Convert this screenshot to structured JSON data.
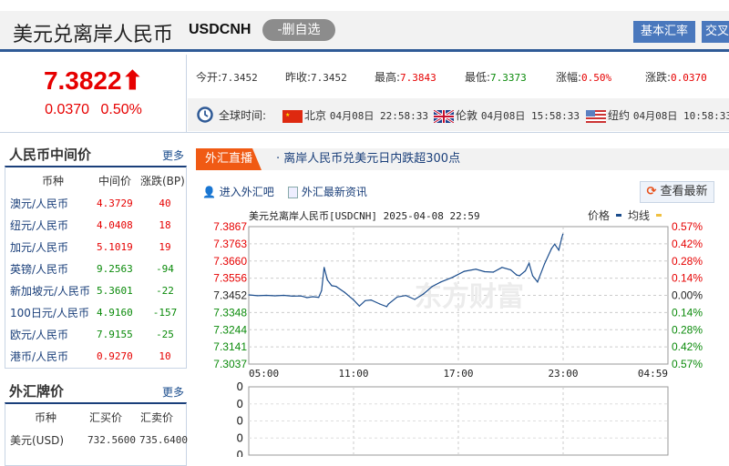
{
  "header": {
    "title": "美元兑离岸人民币",
    "code": "USDCNH",
    "remove_watch": "-删自选",
    "btn_basic": "基本汇率",
    "btn_cross": "交叉"
  },
  "quote": {
    "price": "7.3822",
    "arrow": "⬆",
    "change": "0.0370",
    "change_pct": "0.50%"
  },
  "stats": [
    {
      "label": "今开:",
      "value": "7.3452",
      "color": "#333333"
    },
    {
      "label": "昨收:",
      "value": "7.3452",
      "color": "#333333"
    },
    {
      "label": "最高:",
      "value": "7.3843",
      "color": "#e60000"
    },
    {
      "label": "最低:",
      "value": "7.3373",
      "color": "#0a8a0a"
    },
    {
      "label": "涨幅:",
      "value": "0.50%",
      "color": "#e60000"
    },
    {
      "label": "涨跌:",
      "value": "0.0370",
      "color": "#e60000"
    }
  ],
  "world_time": {
    "label": "全球时间:",
    "cities": [
      {
        "name": "北京",
        "time": "04月08日 22:58:33",
        "flag": "china-flag"
      },
      {
        "name": "伦敦",
        "time": "04月08日 15:58:33",
        "flag": "uk-flag"
      },
      {
        "name": "纽约",
        "time": "04月08日 10:58:33",
        "flag": "us-flag"
      }
    ]
  },
  "mid_price": {
    "title": "人民币中间价",
    "more": "更多",
    "headers": [
      "币种",
      "中间价",
      "涨跌(BP)"
    ],
    "rows": [
      {
        "name": "澳元/人民币",
        "price": "4.3729",
        "bp": "40",
        "dir": "up"
      },
      {
        "name": "纽元/人民币",
        "price": "4.0408",
        "bp": "18",
        "dir": "up"
      },
      {
        "name": "加元/人民币",
        "price": "5.1019",
        "bp": "19",
        "dir": "up"
      },
      {
        "name": "英镑/人民币",
        "price": "9.2563",
        "bp": "-94",
        "dir": "down"
      },
      {
        "name": "新加坡元/人民币",
        "price": "5.3601",
        "bp": "-22",
        "dir": "down"
      },
      {
        "name": "100日元/人民币",
        "price": "4.9160",
        "bp": "-157",
        "dir": "down"
      },
      {
        "name": "欧元/人民币",
        "price": "7.9155",
        "bp": "-25",
        "dir": "down"
      },
      {
        "name": "港币/人民币",
        "price": "0.9270",
        "bp": "10",
        "dir": "up"
      }
    ]
  },
  "board": {
    "title": "外汇牌价",
    "more": "更多",
    "headers": [
      "币种",
      "汇买价",
      "汇卖价"
    ],
    "rows": [
      {
        "name": "美元(USD)",
        "buy": "732.5600",
        "sell": "735.6400"
      }
    ]
  },
  "live": {
    "tag": "外汇直播",
    "news": "· 离岸人民币兑美元日内跌超300点"
  },
  "links": {
    "forum": "进入外汇吧",
    "news": "外汇最新资讯",
    "refresh": "查看最新"
  },
  "chart_data": {
    "type": "line",
    "title": "美元兑离岸人民币[USDCNH] 2025-04-08 22:59",
    "legend": [
      {
        "name": "价格",
        "color": "#1a4c8c"
      },
      {
        "name": "均线",
        "color": "#f0c040"
      }
    ],
    "ylim": [
      7.3037,
      7.3867
    ],
    "base": 7.3452,
    "y_ticks": [
      "7.3867",
      "7.3763",
      "7.3660",
      "7.3556",
      "7.3452",
      "7.3348",
      "7.3244",
      "7.3141",
      "7.3037"
    ],
    "pct_ticks": [
      "0.57%",
      "0.42%",
      "0.28%",
      "0.14%",
      "0.00%",
      "0.14%",
      "0.28%",
      "0.42%",
      "0.57%"
    ],
    "x_ticks": [
      "05:00",
      "11:00",
      "17:00",
      "23:00",
      "04:59"
    ],
    "volume_ticks": [
      "0",
      "0",
      "0",
      "0",
      "0"
    ],
    "series": [
      {
        "name": "价格",
        "x": [
          "05:00",
          "05:30",
          "06:00",
          "06:30",
          "07:00",
          "07:30",
          "08:00",
          "08:20",
          "08:40",
          "09:00",
          "09:10",
          "09:19",
          "09:30",
          "09:45",
          "10:00",
          "10:30",
          "11:00",
          "11:20",
          "11:40",
          "12:00",
          "12:30",
          "12:54",
          "13:00",
          "13:30",
          "14:00",
          "14:30",
          "15:00",
          "15:30",
          "16:00",
          "16:40",
          "17:20",
          "18:00",
          "18:30",
          "19:00",
          "19:30",
          "20:00",
          "20:20",
          "20:30",
          "20:50",
          "21:03",
          "21:15",
          "21:32",
          "21:56",
          "22:20",
          "22:31",
          "22:45",
          "22:55",
          "22:59"
        ],
        "y": [
          7.3455,
          7.345,
          7.3452,
          7.3449,
          7.3452,
          7.3447,
          7.3448,
          7.3438,
          7.3444,
          7.344,
          7.348,
          7.3621,
          7.3545,
          7.351,
          7.3506,
          7.3469,
          7.3424,
          7.3387,
          7.342,
          7.3424,
          7.34,
          7.3384,
          7.34,
          7.3442,
          7.3451,
          7.3427,
          7.346,
          7.3506,
          7.3533,
          7.3561,
          7.3597,
          7.361,
          7.3595,
          7.3592,
          7.3621,
          7.3606,
          7.3575,
          7.357,
          7.36,
          7.3646,
          7.357,
          7.3533,
          7.3643,
          7.3734,
          7.3761,
          7.3725,
          7.3798,
          7.3822
        ]
      }
    ]
  }
}
